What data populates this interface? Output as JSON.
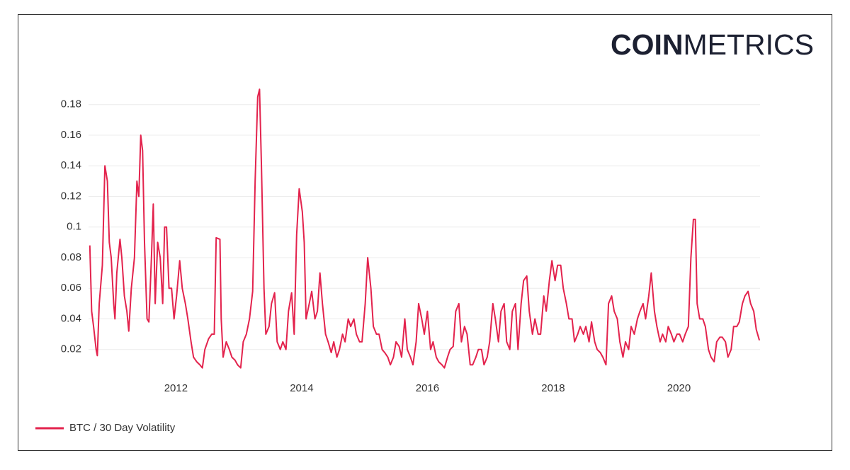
{
  "logo": {
    "bold": "COIN",
    "light": "METRICS"
  },
  "chart_data": {
    "type": "line",
    "x": [
      2010.63,
      2010.66,
      2010.69,
      2010.73,
      2010.75,
      2010.78,
      2010.83,
      2010.87,
      2010.91,
      2010.94,
      2010.97,
      2011.01,
      2011.03,
      2011.06,
      2011.11,
      2011.14,
      2011.18,
      2011.22,
      2011.25,
      2011.29,
      2011.34,
      2011.38,
      2011.41,
      2011.44,
      2011.47,
      2011.5,
      2011.54,
      2011.57,
      2011.61,
      2011.64,
      2011.67,
      2011.71,
      2011.75,
      2011.79,
      2011.82,
      2011.85,
      2011.89,
      2011.93,
      2011.97,
      2012.01,
      2012.06,
      2012.1,
      2012.15,
      2012.19,
      2012.24,
      2012.28,
      2012.33,
      2012.38,
      2012.42,
      2012.46,
      2012.52,
      2012.57,
      2012.61,
      2012.64,
      2012.7,
      2012.72,
      2012.75,
      2012.8,
      2012.85,
      2012.89,
      2012.94,
      2012.98,
      2013.03,
      2013.07,
      2013.12,
      2013.17,
      2013.22,
      2013.26,
      2013.3,
      2013.33,
      2013.36,
      2013.4,
      2013.43,
      2013.48,
      2013.52,
      2013.57,
      2013.61,
      2013.66,
      2013.7,
      2013.75,
      2013.79,
      2013.84,
      2013.88,
      2013.92,
      2013.96,
      2014.01,
      2014.04,
      2014.07,
      2014.12,
      2014.16,
      2014.21,
      2014.25,
      2014.29,
      2014.33,
      2014.38,
      2014.42,
      2014.47,
      2014.51,
      2014.56,
      2014.6,
      2014.65,
      2014.69,
      2014.74,
      2014.78,
      2014.83,
      2014.87,
      2014.92,
      2014.96,
      2015.01,
      2015.05,
      2015.1,
      2015.14,
      2015.19,
      2015.23,
      2015.28,
      2015.32,
      2015.37,
      2015.41,
      2015.46,
      2015.5,
      2015.55,
      2015.59,
      2015.64,
      2015.68,
      2015.73,
      2015.77,
      2015.82,
      2015.86,
      2015.91,
      2015.95,
      2016.0,
      2016.05,
      2016.09,
      2016.14,
      2016.18,
      2016.23,
      2016.27,
      2016.32,
      2016.36,
      2016.41,
      2016.45,
      2016.5,
      2016.54,
      2016.59,
      2016.63,
      2016.68,
      2016.72,
      2016.77,
      2016.81,
      2016.86,
      2016.9,
      2016.95,
      2016.99,
      2017.04,
      2017.08,
      2017.13,
      2017.17,
      2017.22,
      2017.26,
      2017.31,
      2017.35,
      2017.4,
      2017.44,
      2017.49,
      2017.53,
      2017.58,
      2017.62,
      2017.67,
      2017.71,
      2017.76,
      2017.8,
      2017.85,
      2017.89,
      2017.94,
      2017.98,
      2018.03,
      2018.07,
      2018.12,
      2018.16,
      2018.21,
      2018.25,
      2018.3,
      2018.34,
      2018.39,
      2018.43,
      2018.48,
      2018.52,
      2018.57,
      2018.61,
      2018.66,
      2018.7,
      2018.75,
      2018.79,
      2018.84,
      2018.88,
      2018.93,
      2018.97,
      2019.02,
      2019.06,
      2019.11,
      2019.15,
      2019.2,
      2019.24,
      2019.29,
      2019.34,
      2019.38,
      2019.43,
      2019.47,
      2019.52,
      2019.56,
      2019.61,
      2019.65,
      2019.7,
      2019.74,
      2019.79,
      2019.83,
      2019.88,
      2019.92,
      2019.97,
      2020.01,
      2020.06,
      2020.1,
      2020.15,
      2020.19,
      2020.23,
      2020.26,
      2020.29,
      2020.33,
      2020.38,
      2020.42,
      2020.47,
      2020.51,
      2020.56,
      2020.6,
      2020.65,
      2020.69,
      2020.74,
      2020.78,
      2020.83,
      2020.87,
      2020.92,
      2020.96,
      2021.01,
      2021.05,
      2021.1,
      2021.14,
      2021.19,
      2021.23,
      2021.28
    ],
    "series": [
      {
        "name": "BTC / 30 Day Volatility",
        "color": "#e3234d",
        "values": [
          0.088,
          0.045,
          0.035,
          0.02,
          0.016,
          0.05,
          0.075,
          0.14,
          0.13,
          0.09,
          0.08,
          0.05,
          0.04,
          0.07,
          0.092,
          0.08,
          0.055,
          0.045,
          0.032,
          0.06,
          0.08,
          0.13,
          0.12,
          0.16,
          0.15,
          0.09,
          0.04,
          0.038,
          0.08,
          0.115,
          0.05,
          0.09,
          0.08,
          0.05,
          0.1,
          0.1,
          0.06,
          0.06,
          0.04,
          0.055,
          0.078,
          0.06,
          0.05,
          0.04,
          0.025,
          0.015,
          0.012,
          0.01,
          0.008,
          0.02,
          0.027,
          0.03,
          0.03,
          0.093,
          0.092,
          0.04,
          0.015,
          0.025,
          0.02,
          0.015,
          0.013,
          0.01,
          0.008,
          0.025,
          0.03,
          0.04,
          0.058,
          0.13,
          0.185,
          0.19,
          0.14,
          0.06,
          0.03,
          0.035,
          0.05,
          0.057,
          0.025,
          0.02,
          0.025,
          0.02,
          0.045,
          0.057,
          0.03,
          0.095,
          0.125,
          0.11,
          0.09,
          0.04,
          0.05,
          0.058,
          0.04,
          0.045,
          0.07,
          0.05,
          0.03,
          0.025,
          0.018,
          0.025,
          0.015,
          0.02,
          0.03,
          0.025,
          0.04,
          0.035,
          0.04,
          0.03,
          0.025,
          0.025,
          0.05,
          0.08,
          0.06,
          0.035,
          0.03,
          0.03,
          0.02,
          0.018,
          0.015,
          0.01,
          0.015,
          0.025,
          0.022,
          0.015,
          0.04,
          0.02,
          0.015,
          0.01,
          0.025,
          0.05,
          0.04,
          0.03,
          0.045,
          0.02,
          0.025,
          0.015,
          0.012,
          0.01,
          0.008,
          0.015,
          0.02,
          0.022,
          0.045,
          0.05,
          0.025,
          0.035,
          0.03,
          0.01,
          0.01,
          0.015,
          0.02,
          0.02,
          0.01,
          0.015,
          0.025,
          0.05,
          0.04,
          0.025,
          0.045,
          0.05,
          0.025,
          0.02,
          0.045,
          0.05,
          0.02,
          0.05,
          0.065,
          0.068,
          0.045,
          0.03,
          0.04,
          0.03,
          0.03,
          0.055,
          0.045,
          0.065,
          0.078,
          0.065,
          0.075,
          0.075,
          0.06,
          0.05,
          0.04,
          0.04,
          0.025,
          0.03,
          0.035,
          0.03,
          0.035,
          0.025,
          0.038,
          0.025,
          0.02,
          0.018,
          0.015,
          0.01,
          0.05,
          0.055,
          0.045,
          0.04,
          0.025,
          0.015,
          0.025,
          0.02,
          0.035,
          0.03,
          0.04,
          0.045,
          0.05,
          0.04,
          0.055,
          0.07,
          0.045,
          0.035,
          0.025,
          0.03,
          0.025,
          0.035,
          0.03,
          0.025,
          0.03,
          0.03,
          0.025,
          0.03,
          0.035,
          0.08,
          0.105,
          0.105,
          0.05,
          0.04,
          0.04,
          0.035,
          0.02,
          0.015,
          0.012,
          0.025,
          0.028,
          0.028,
          0.025,
          0.015,
          0.02,
          0.035,
          0.035,
          0.038,
          0.05,
          0.055,
          0.058,
          0.05,
          0.045,
          0.033,
          0.026
        ]
      }
    ],
    "xlim": [
      2010.61,
      2021.29
    ],
    "xticks": [
      2012,
      2014,
      2016,
      2018,
      2020
    ],
    "ylim": [
      0,
      0.2
    ],
    "yticks": [
      0.02,
      0.04,
      0.06,
      0.08,
      0.1,
      0.12,
      0.14,
      0.16,
      0.18
    ],
    "grid": true,
    "legend": "bottom-left"
  }
}
